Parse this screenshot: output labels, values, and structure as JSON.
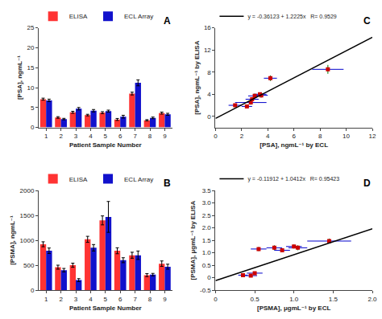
{
  "chart_data": [
    {
      "type": "bar",
      "xlabel": "Patient Sample Number",
      "ylabel": "[PSA], ngmL⁻¹",
      "annotations": [
        "A"
      ],
      "categories": [
        "1",
        "2",
        "3",
        "4",
        "5",
        "6",
        "7",
        "8",
        "9"
      ],
      "series": [
        {
          "name": "ELISA",
          "color": "#FF3333",
          "values": [
            7.1,
            2.5,
            3.8,
            3.1,
            3.7,
            2.0,
            8.5,
            1.8,
            3.6
          ],
          "y_err": {
            "values": [
              0.25,
              0.2,
              0.25,
              0.2,
              0.25,
              0.25,
              0.35,
              0.15,
              0.25
            ],
            "color": "#000000"
          }
        },
        {
          "name": "ECL Array",
          "color": "#1111CC",
          "values": [
            6.8,
            2.1,
            4.7,
            4.2,
            4.1,
            2.7,
            11.2,
            2.4,
            3.3
          ],
          "y_err": {
            "values": [
              0.3,
              0.18,
              0.3,
              0.3,
              0.25,
              0.35,
              0.75,
              0.2,
              0.25
            ],
            "color": "#000000"
          }
        }
      ],
      "ylim": [
        0,
        25
      ],
      "yticks": [
        0,
        5,
        10,
        15,
        20,
        25
      ],
      "grid": false,
      "legend": "upper right"
    },
    {
      "type": "bar",
      "xlabel": "Patient Sample Number",
      "ylabel": "[PSMA], ngmL⁻¹",
      "annotations": [
        "B"
      ],
      "categories": [
        "1",
        "2",
        "3",
        "4",
        "5",
        "6",
        "7",
        "8",
        "9"
      ],
      "series": [
        {
          "name": "ELISA",
          "color": "#FF3333",
          "values": [
            920,
            460,
            500,
            1020,
            1400,
            790,
            700,
            300,
            530
          ],
          "y_err": {
            "values": [
              50,
              40,
              40,
              60,
              90,
              60,
              60,
              30,
              55
            ],
            "color": "#000000"
          }
        },
        {
          "name": "ECL Array",
          "color": "#1111CC",
          "values": [
            790,
            400,
            200,
            850,
            1470,
            600,
            700,
            310,
            470
          ],
          "y_err": {
            "values": [
              55,
              35,
              30,
              65,
              310,
              50,
              85,
              25,
              50
            ],
            "color": "#000000"
          }
        }
      ],
      "ylim": [
        0,
        2000
      ],
      "yticks": [
        0,
        500,
        1000,
        1500,
        2000
      ],
      "grid": false,
      "legend": "upper right"
    },
    {
      "type": "scatter",
      "xlabel": "[PSA], ngmL⁻¹ by ECL",
      "ylabel": "[PSA], ngmL⁻¹ by ELISA",
      "annotations": [
        "C"
      ],
      "series": [
        {
          "type": "scatter",
          "marker": "square",
          "color": "#CC0000",
          "x": [
            2.7,
            2.8,
            3.4,
            3.5,
            1.5,
            3.0,
            8.6,
            2.4,
            4.2
          ],
          "values": [
            2.5,
            3.1,
            4.0,
            3.8,
            2.0,
            3.7,
            8.5,
            1.8,
            6.9
          ],
          "x_err": {
            "values": [
              1.2,
              0.5,
              0.5,
              0.5,
              0.5,
              0.5,
              1.2,
              0.4,
              0.5
            ],
            "color": "#0000CC"
          },
          "y_err": {
            "values": [
              0.4,
              0.3,
              0.3,
              0.4,
              0.3,
              0.4,
              0.8,
              0.3,
              0.5
            ],
            "color": "#007700"
          }
        },
        {
          "type": "line",
          "name": "y = -0.36123 + 1.2225x   R= 0.9529",
          "color": "#000000",
          "line_style": "solid",
          "x": [
            0,
            12
          ],
          "values": [
            -0.36123,
            14.30877
          ]
        }
      ],
      "xlim": [
        0,
        12
      ],
      "xticks": [
        0,
        2,
        4,
        6,
        8,
        10,
        12
      ],
      "ylim": [
        -2,
        16
      ],
      "yticks": [
        0,
        4,
        8,
        12,
        16
      ],
      "grid": false,
      "legend": "upper left"
    },
    {
      "type": "scatter",
      "xlabel": "[PSMA], μgmL⁻¹ by ECL",
      "ylabel": "[PSMA], μgmL⁻¹ by ELISA",
      "annotations": [
        "D"
      ],
      "series": [
        {
          "type": "scatter",
          "marker": "square",
          "color": "#CC0000",
          "x": [
            0.35,
            0.5,
            0.55,
            0.75,
            0.85,
            1.0,
            1.05,
            1.45,
            0.45
          ],
          "values": [
            0.1,
            0.18,
            1.15,
            1.2,
            1.1,
            1.25,
            1.2,
            1.47,
            0.08
          ],
          "x_err": {
            "values": [
              0.06,
              0.1,
              0.1,
              0.1,
              0.1,
              0.1,
              0.12,
              0.28,
              0.08
            ],
            "color": "#0000CC"
          },
          "y_err": {
            "values": [
              0.03,
              0.04,
              0.08,
              0.1,
              0.08,
              0.08,
              0.1,
              0.1,
              0.03
            ],
            "color": "#007700"
          }
        },
        {
          "type": "line",
          "name": "y = -0.11912 + 1.0412x   R= 0.95423",
          "color": "#000000",
          "line_style": "solid",
          "x": [
            0,
            2
          ],
          "values": [
            -0.11912,
            1.96328
          ]
        }
      ],
      "xlim": [
        0,
        2
      ],
      "xticks": [
        0,
        0.5,
        {
          "value": 1,
          "label": "1.0"
        },
        1.5,
        {
          "value": 2,
          "label": "2.0"
        }
      ],
      "ylim": [
        -0.5,
        3.5
      ],
      "yticks": [
        -0.5,
        0,
        0.5,
        {
          "value": 1,
          "label": "1.0"
        },
        1.5,
        {
          "value": 2,
          "label": "2.0"
        },
        2.5,
        {
          "value": 3,
          "label": "3.0"
        },
        3.5
      ],
      "grid": false,
      "legend": "upper left"
    }
  ]
}
